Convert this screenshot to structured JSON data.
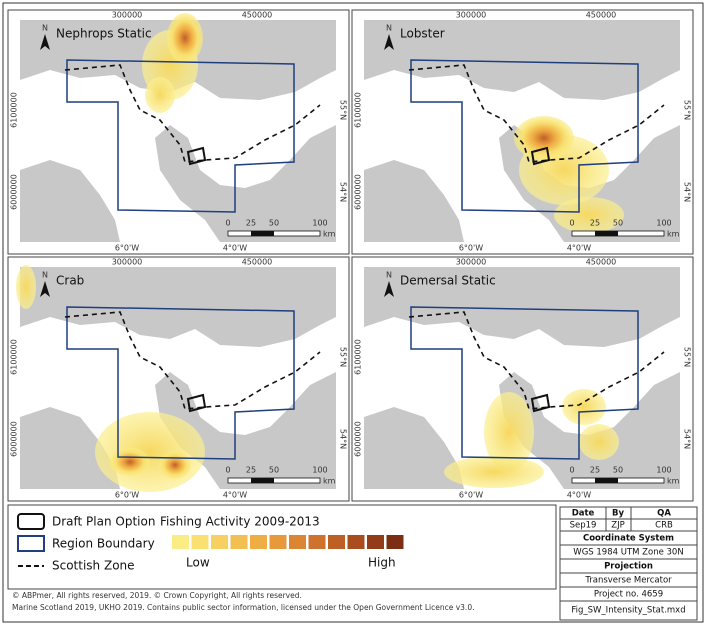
{
  "panels": [
    {
      "title": "Nephrops Static",
      "north": "N",
      "top_ticks": [
        "300000",
        "450000"
      ],
      "left_ticks": [
        "6100000",
        "6000000"
      ],
      "right_ticks": [
        "55°N",
        "54°N"
      ],
      "bottom_ticks": [
        "6°0'W",
        "4°0'W"
      ],
      "scale_ticks": [
        "0",
        "25",
        "50",
        "100"
      ],
      "scale_unit": "km"
    },
    {
      "title": "Lobster",
      "north": "N",
      "top_ticks": [
        "300000",
        "450000"
      ],
      "left_ticks": [
        "6100000",
        "6000000"
      ],
      "right_ticks": [
        "55°N",
        "54°N"
      ],
      "bottom_ticks": [
        "6°0'W",
        "4°0'W"
      ],
      "scale_ticks": [
        "0",
        "25",
        "50",
        "100"
      ],
      "scale_unit": "km"
    },
    {
      "title": "Crab",
      "north": "N",
      "top_ticks": [
        "300000",
        "450000"
      ],
      "left_ticks": [
        "6100000",
        "6000000"
      ],
      "right_ticks": [
        "55°N",
        "54°N"
      ],
      "bottom_ticks": [
        "6°0'W",
        "4°0'W"
      ],
      "scale_ticks": [
        "0",
        "25",
        "50",
        "100"
      ],
      "scale_unit": "km"
    },
    {
      "title": "Demersal Static",
      "north": "N",
      "top_ticks": [
        "300000",
        "450000"
      ],
      "left_ticks": [
        "6100000",
        "6000000"
      ],
      "right_ticks": [
        "55°N",
        "54°N"
      ],
      "bottom_ticks": [
        "6°0'W",
        "4°0'W"
      ],
      "scale_ticks": [
        "0",
        "25",
        "50",
        "100"
      ],
      "scale_unit": "km"
    }
  ],
  "legend": {
    "items": [
      "Draft Plan Option",
      "Region Boundary",
      "Scottish Zone"
    ],
    "heat_title": "Fishing Activity 2009-2013",
    "low": "Low",
    "high": "High"
  },
  "info": {
    "headers": [
      "Date",
      "By",
      "QA"
    ],
    "values": [
      "Sep19",
      "ZJP",
      "CRB"
    ],
    "coord_label": "Coordinate System",
    "coord_value": "WGS 1984 UTM Zone 30N",
    "proj_label": "Projection",
    "proj_value": "Transverse Mercator",
    "project": "Project no. 4659",
    "file": "Fig_SW_Intensity_Stat.mxd"
  },
  "footer": [
    "© ABPmer, All rights reserved, 2019. © Crown Copyright, All rights reserved.",
    "Marine Scotland 2019, UKHO 2019. Contains public sector information, licensed under the Open Government Licence v3.0."
  ]
}
